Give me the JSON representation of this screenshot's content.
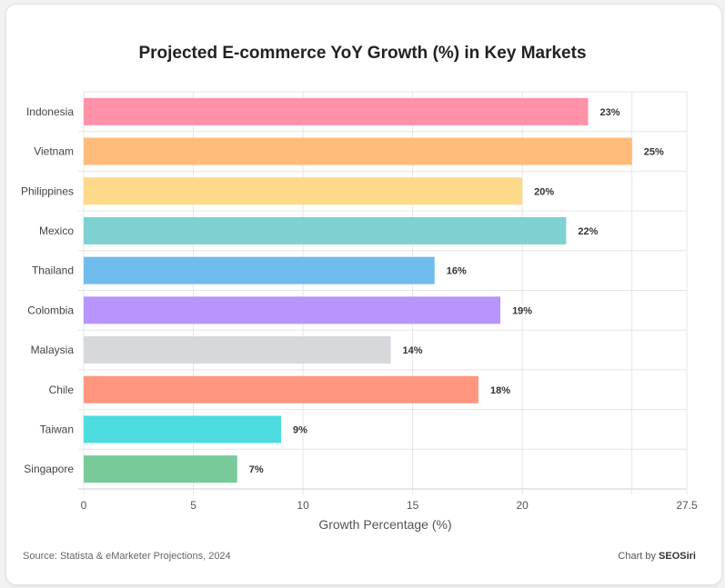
{
  "chart_data": {
    "type": "bar",
    "orientation": "horizontal",
    "title": "Projected E-commerce YoY Growth (%) in Key Markets",
    "xlabel": "Growth Percentage (%)",
    "ylabel": "",
    "xlim": [
      0,
      27.5
    ],
    "x_ticks": [
      "0",
      "5",
      "10",
      "15",
      "20",
      "27.5"
    ],
    "x_tick_values": [
      0,
      5,
      10,
      15,
      20,
      27.5
    ],
    "grid": true,
    "categories": [
      "Indonesia",
      "Vietnam",
      "Philippines",
      "Mexico",
      "Thailand",
      "Colombia",
      "Malaysia",
      "Chile",
      "Taiwan",
      "Singapore"
    ],
    "values": [
      23,
      25,
      20,
      22,
      16,
      19,
      14,
      18,
      9,
      7
    ],
    "data_labels": [
      "23%",
      "25%",
      "20%",
      "22%",
      "16%",
      "19%",
      "14%",
      "18%",
      "9%",
      "7%"
    ],
    "colors": [
      "#ff91a8",
      "#ffbb7a",
      "#ffd98a",
      "#7fd1d1",
      "#70bbee",
      "#b795fb",
      "#d6d8dc",
      "#ff9680",
      "#4ddcdf",
      "#78cb99"
    ]
  },
  "footer": {
    "source": "Source: Statista & eMarketer Projections, 2024",
    "credit_prefix": "Chart by ",
    "credit_brand": "SEOSiri"
  }
}
